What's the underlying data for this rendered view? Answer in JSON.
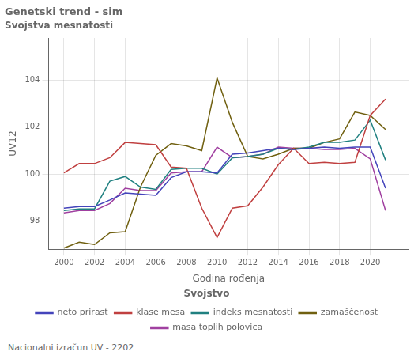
{
  "chart_data": {
    "type": "line",
    "title": "Genetski trend - sim",
    "subtitle": "Svojstva mesnatosti",
    "xlabel": "Godina rođenja",
    "ylabel": "UV12",
    "annotations": [
      "Nacionalni izračun UV - 2202"
    ],
    "legend_title": "Svojstvo",
    "legend": "bottom",
    "grid": true,
    "xlim": [
      1999,
      2022.5
    ],
    "ylim": [
      96.8,
      105.8
    ],
    "xticks": [
      2000,
      2002,
      2004,
      2006,
      2008,
      2010,
      2012,
      2014,
      2016,
      2018,
      2020
    ],
    "yticks": [
      98,
      100,
      102,
      104
    ],
    "x": [
      2000,
      2001,
      2002,
      2003,
      2004,
      2005,
      2006,
      2007,
      2008,
      2009,
      2010,
      2011,
      2012,
      2013,
      2014,
      2015,
      2016,
      2017,
      2018,
      2019,
      2020,
      2021
    ],
    "series": [
      {
        "name": "neto prirast",
        "color": "#4444bb",
        "values": [
          98.55,
          98.62,
          98.62,
          98.9,
          99.2,
          99.15,
          99.1,
          99.85,
          100.1,
          100.1,
          100.05,
          100.85,
          100.9,
          101.0,
          101.1,
          101.05,
          101.1,
          101.15,
          101.1,
          101.15,
          101.15,
          99.4
        ]
      },
      {
        "name": "klase mesa",
        "color": "#c04040",
        "values": [
          100.05,
          100.45,
          100.45,
          100.7,
          101.35,
          101.3,
          101.25,
          100.3,
          100.25,
          98.55,
          97.3,
          98.55,
          98.65,
          99.45,
          100.4,
          101.1,
          100.45,
          100.5,
          100.45,
          100.5,
          102.5,
          103.2
        ]
      },
      {
        "name": "indeks mesnatosti",
        "color": "#208080",
        "values": [
          98.45,
          98.52,
          98.52,
          99.7,
          99.9,
          99.45,
          99.35,
          100.2,
          100.25,
          100.25,
          100.0,
          100.7,
          100.75,
          100.85,
          101.1,
          101.05,
          101.15,
          101.35,
          101.35,
          101.45,
          102.3,
          100.6
        ]
      },
      {
        "name": "zamaščenost",
        "color": "#706010",
        "values": [
          96.85,
          97.1,
          97.0,
          97.5,
          97.55,
          99.45,
          100.8,
          101.3,
          101.2,
          101.0,
          104.1,
          102.2,
          100.75,
          100.65,
          100.85,
          101.1,
          101.1,
          101.35,
          101.5,
          102.65,
          102.5,
          101.9
        ]
      },
      {
        "name": "masa toplih polovica",
        "color": "#a040a0",
        "values": [
          98.35,
          98.45,
          98.45,
          98.75,
          99.4,
          99.3,
          99.3,
          100.05,
          100.1,
          100.1,
          101.15,
          100.7,
          100.75,
          100.85,
          101.15,
          101.1,
          101.1,
          101.05,
          101.05,
          101.1,
          100.65,
          98.45
        ]
      }
    ]
  }
}
